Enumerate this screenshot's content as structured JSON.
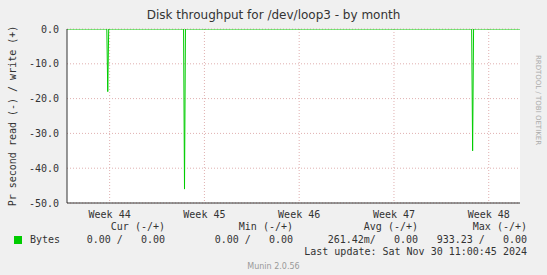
{
  "chart_data": {
    "type": "line",
    "title": "Disk throughput for /dev/loop3 - by month",
    "y_label": "Pr second read (-) / write (+)",
    "x": [
      43.55,
      43.97,
      43.98,
      43.99,
      44.78,
      44.79,
      44.8,
      47.82,
      47.83,
      47.84,
      48.33
    ],
    "series": [
      {
        "name": "Bytes",
        "color": "#00cc00",
        "values": [
          0,
          0,
          -18,
          0,
          0,
          -46,
          0,
          0,
          -35,
          0,
          0
        ]
      }
    ],
    "xlim": [
      43.55,
      48.33
    ],
    "xticks": [
      {
        "value": 44,
        "label": "Week 44"
      },
      {
        "value": 45,
        "label": "Week 45"
      },
      {
        "value": 46,
        "label": "Week 46"
      },
      {
        "value": 47,
        "label": "Week 47"
      },
      {
        "value": 48,
        "label": "Week 48"
      }
    ],
    "ylim": [
      -50,
      0
    ],
    "yticks": [
      {
        "value": 0,
        "label": "0.0"
      },
      {
        "value": -10,
        "label": "-10.0"
      },
      {
        "value": -20,
        "label": "-20.0"
      },
      {
        "value": -30,
        "label": "-30.0"
      },
      {
        "value": -40,
        "label": "-40.0"
      },
      {
        "value": -50,
        "label": "-50.0"
      }
    ],
    "grid": true,
    "legend": "bottom"
  },
  "stats_table": {
    "columns": [
      "Cur (-/+)",
      "Min (-/+)",
      "Avg (-/+)",
      "Max (-/+)"
    ],
    "rows": [
      [
        "0.00 /   0.00",
        "0.00 /   0.00",
        "261.42m/   0.00",
        "933.23 /   0.00"
      ]
    ]
  },
  "last_update": "Last update: Sat Nov 30 11:00:45 2024",
  "footer": "Munin 2.0.56",
  "side_text": "RRDTOOL / TOBI OETIKER"
}
